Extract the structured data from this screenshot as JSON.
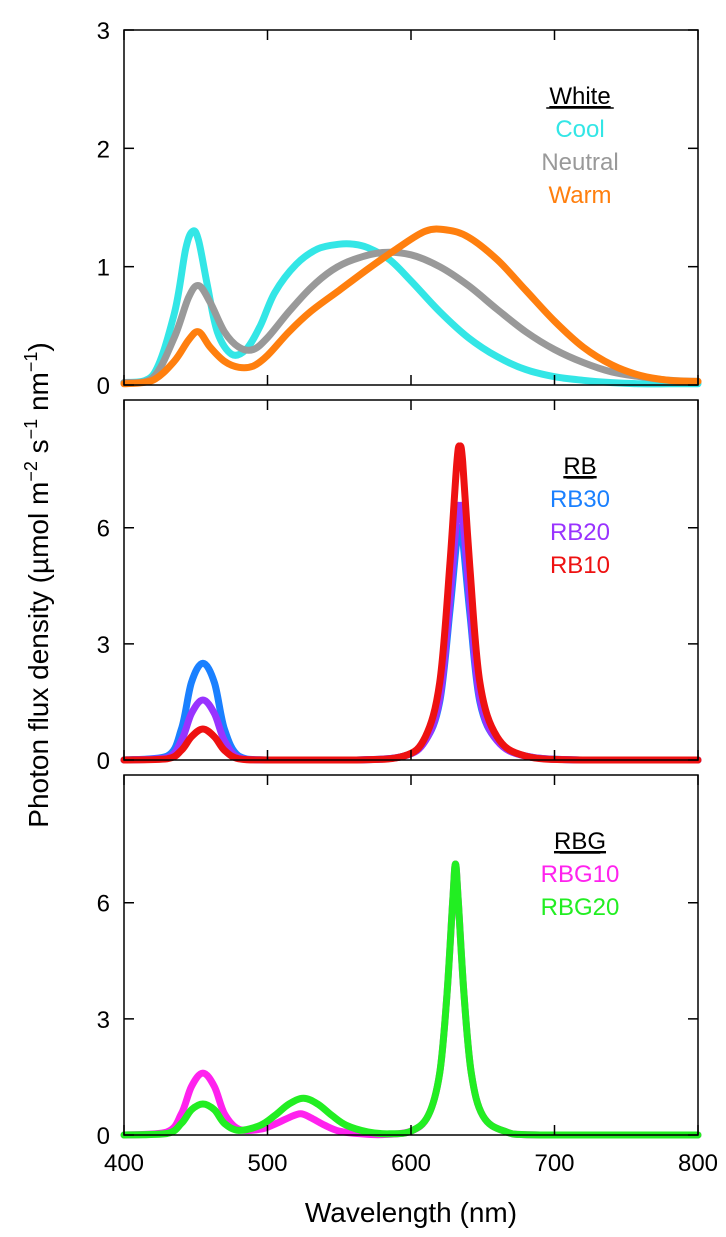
{
  "chart_data": {
    "type": "line",
    "xlabel": "Wavelength (nm)",
    "ylabel": {
      "prefix": "Photon flux density (µmol m",
      "exp1": "−2",
      "mid1": " s",
      "exp2": "−1",
      "mid2": " nm",
      "exp3": "−1",
      "suffix": ")"
    },
    "xlim": [
      400,
      800
    ],
    "xticks": [
      400,
      500,
      600,
      700,
      800
    ],
    "panels": [
      {
        "id": "white",
        "ylim": [
          0,
          3
        ],
        "yticks": [
          0,
          1,
          2,
          3
        ],
        "legend_title": "White",
        "series": [
          {
            "name": "Cool",
            "color": "#33e6e6",
            "x": [
              400,
              420,
              435,
              443,
              448,
              452,
              458,
              465,
              475,
              485,
              495,
              505,
              520,
              535,
              550,
              560,
              570,
              585,
              600,
              620,
              640,
              660,
              680,
              700,
              720,
              740,
              760,
              780,
              800
            ],
            "y": [
              0.02,
              0.08,
              0.6,
              1.15,
              1.3,
              1.22,
              0.85,
              0.45,
              0.26,
              0.3,
              0.5,
              0.78,
              1.02,
              1.15,
              1.19,
              1.19,
              1.16,
              1.06,
              0.88,
              0.62,
              0.4,
              0.24,
              0.13,
              0.07,
              0.04,
              0.02,
              0.01,
              0.01,
              0.01
            ]
          },
          {
            "name": "Neutral",
            "color": "#999999",
            "x": [
              400,
              420,
              435,
              445,
              452,
              460,
              470,
              480,
              490,
              500,
              515,
              530,
              545,
              560,
              580,
              600,
              620,
              640,
              660,
              680,
              700,
              720,
              740,
              760,
              780,
              800
            ],
            "y": [
              0.02,
              0.06,
              0.4,
              0.74,
              0.84,
              0.7,
              0.45,
              0.32,
              0.3,
              0.4,
              0.62,
              0.82,
              0.97,
              1.06,
              1.12,
              1.1,
              1.0,
              0.84,
              0.64,
              0.45,
              0.3,
              0.19,
              0.11,
              0.07,
              0.04,
              0.03
            ]
          },
          {
            "name": "Warm",
            "color": "#ff7f0e",
            "x": [
              400,
              420,
              435,
              445,
              452,
              460,
              470,
              480,
              490,
              500,
              515,
              530,
              550,
              570,
              590,
              610,
              625,
              640,
              660,
              680,
              700,
              720,
              740,
              760,
              780,
              800
            ],
            "y": [
              0.01,
              0.04,
              0.2,
              0.38,
              0.45,
              0.32,
              0.2,
              0.15,
              0.16,
              0.25,
              0.45,
              0.62,
              0.8,
              0.98,
              1.15,
              1.3,
              1.31,
              1.25,
              1.06,
              0.8,
              0.54,
              0.32,
              0.17,
              0.08,
              0.04,
              0.03
            ]
          }
        ]
      },
      {
        "id": "rb",
        "ylim": [
          0,
          9.3
        ],
        "yticks": [
          0,
          3,
          6
        ],
        "legend_title": "RB",
        "series": [
          {
            "name": "RB30",
            "color": "#1a80ff",
            "x": [
              400,
              430,
              440,
              447,
              455,
              463,
              470,
              480,
              500,
              560,
              595,
              610,
              620,
              627,
              632,
              634,
              636,
              641,
              648,
              660,
              680,
              720,
              800
            ],
            "y": [
              0,
              0.1,
              0.8,
              2.0,
              2.5,
              2.0,
              0.8,
              0.1,
              0,
              0,
              0.1,
              0.5,
              1.5,
              3.8,
              5.7,
              6.0,
              5.7,
              3.8,
              1.5,
              0.5,
              0.1,
              0,
              0
            ]
          },
          {
            "name": "RB20",
            "color": "#9933ff",
            "x": [
              400,
              430,
              440,
              447,
              455,
              463,
              470,
              480,
              500,
              560,
              595,
              610,
              620,
              627,
              632,
              634,
              636,
              641,
              648,
              660,
              680,
              720,
              800
            ],
            "y": [
              0,
              0.06,
              0.5,
              1.2,
              1.55,
              1.2,
              0.5,
              0.06,
              0,
              0,
              0.1,
              0.5,
              1.6,
              4.1,
              6.3,
              6.55,
              6.3,
              4.1,
              1.6,
              0.5,
              0.1,
              0,
              0
            ]
          },
          {
            "name": "RB10",
            "color": "#ee1111",
            "x": [
              400,
              430,
              440,
              447,
              455,
              463,
              470,
              480,
              500,
              560,
              595,
              610,
              620,
              627,
              632,
              634,
              636,
              641,
              648,
              660,
              680,
              720,
              800
            ],
            "y": [
              0,
              0.03,
              0.25,
              0.6,
              0.8,
              0.6,
              0.25,
              0.03,
              0,
              0,
              0.1,
              0.6,
              2.0,
              5.0,
              7.7,
              8.1,
              7.7,
              5.0,
              2.0,
              0.6,
              0.1,
              0,
              0
            ]
          }
        ]
      },
      {
        "id": "rbg",
        "ylim": [
          0,
          9.3
        ],
        "yticks": [
          0,
          3,
          6
        ],
        "legend_title": "RBG",
        "series": [
          {
            "name": "RBG10",
            "color": "#ff22ee",
            "x": [
              400,
              430,
              440,
              447,
              455,
              463,
              470,
              480,
              495,
              505,
              515,
              523,
              530,
              540,
              550,
              565,
              580,
              600,
              612,
              620,
              625,
              629,
              631,
              633,
              637,
              642,
              650,
              665,
              690,
              800
            ],
            "y": [
              0,
              0.08,
              0.55,
              1.25,
              1.6,
              1.25,
              0.55,
              0.15,
              0.15,
              0.28,
              0.45,
              0.55,
              0.45,
              0.25,
              0.1,
              0.03,
              0.01,
              0.1,
              0.5,
              1.6,
              3.6,
              6.0,
              7.0,
              6.0,
              3.6,
              1.6,
              0.5,
              0.1,
              0,
              0
            ]
          },
          {
            "name": "RBG20",
            "color": "#22ee22",
            "x": [
              400,
              430,
              440,
              447,
              455,
              463,
              470,
              480,
              495,
              505,
              515,
              525,
              535,
              545,
              555,
              570,
              585,
              600,
              612,
              620,
              625,
              629,
              631,
              633,
              637,
              642,
              650,
              665,
              690,
              800
            ],
            "y": [
              0,
              0.04,
              0.3,
              0.65,
              0.8,
              0.65,
              0.3,
              0.12,
              0.25,
              0.5,
              0.8,
              0.95,
              0.8,
              0.5,
              0.25,
              0.08,
              0.03,
              0.1,
              0.5,
              1.6,
              3.6,
              6.0,
              7.0,
              6.0,
              3.6,
              1.6,
              0.5,
              0.1,
              0,
              0
            ]
          }
        ]
      }
    ]
  }
}
